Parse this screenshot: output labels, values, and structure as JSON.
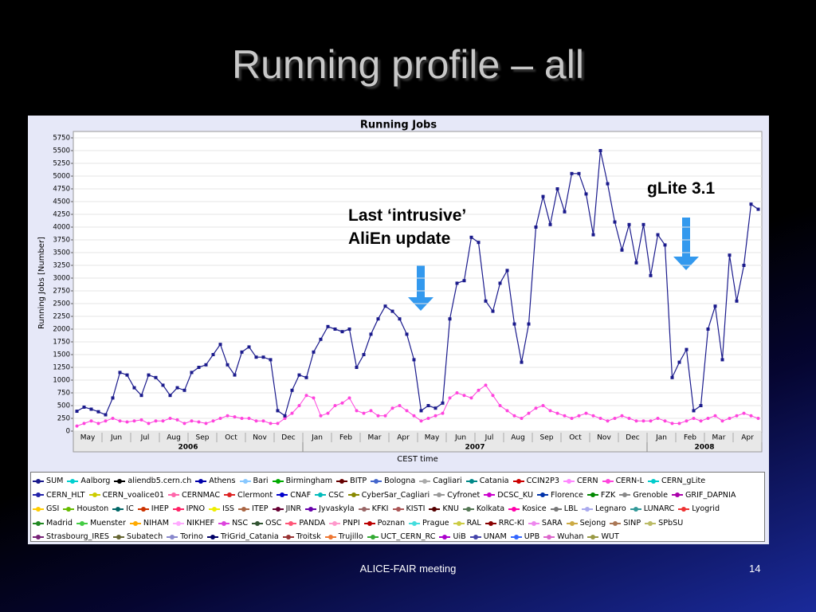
{
  "slide": {
    "title": "Running profile – all",
    "footer": "ALICE-FAIR meeting",
    "page_number": "14"
  },
  "chart_data": {
    "type": "line",
    "title": "Running Jobs",
    "y_label": "Running Jobs [Number]",
    "x_label": "CEST time",
    "annotations": [
      "Last ‘intrusive’ AliEn update",
      "gLite 3.1"
    ],
    "x_group_labels": [
      "2006",
      "2007",
      "2008"
    ],
    "categories": [
      null,
      "May",
      null,
      null,
      null,
      "Jun",
      null,
      null,
      null,
      "Jul",
      null,
      null,
      null,
      "Aug",
      null,
      null,
      null,
      "Sep",
      null,
      null,
      null,
      "Oct",
      null,
      null,
      null,
      "Nov",
      null,
      null,
      null,
      "Dec",
      null,
      null,
      null,
      "Jan",
      null,
      null,
      null,
      "Feb",
      null,
      null,
      null,
      "Mar",
      null,
      null,
      null,
      "Apr",
      null,
      null,
      null,
      "May",
      null,
      null,
      null,
      "Jun",
      null,
      null,
      null,
      "Jul",
      null,
      null,
      null,
      "Aug",
      null,
      null,
      null,
      "Sep",
      null,
      null,
      null,
      "Oct",
      null,
      null,
      null,
      "Nov",
      null,
      null,
      null,
      "Dec",
      null,
      null,
      null,
      "Jan",
      null,
      null,
      null,
      "Feb",
      null,
      null,
      null,
      "Mar",
      null,
      null,
      null,
      "Apr",
      null,
      null
    ],
    "ylim": [
      0,
      5750
    ],
    "yticks": [
      0,
      250,
      500,
      750,
      1000,
      1250,
      1500,
      1750,
      2000,
      2250,
      2500,
      2750,
      3000,
      3250,
      3500,
      3750,
      4000,
      4250,
      4500,
      4750,
      5000,
      5250,
      5500,
      5750
    ],
    "grid": true,
    "series": [
      {
        "name": "SUM",
        "color": "#1a1a8c",
        "values": [
          390,
          470,
          430,
          380,
          320,
          650,
          1150,
          1100,
          850,
          700,
          1100,
          1050,
          900,
          700,
          850,
          800,
          1150,
          1250,
          1300,
          1500,
          1700,
          1300,
          1100,
          1550,
          1650,
          1450,
          1450,
          1400,
          400,
          300,
          800,
          1100,
          1050,
          1550,
          1800,
          2050,
          2000,
          1950,
          2000,
          1250,
          1500,
          1900,
          2200,
          2450,
          2350,
          2200,
          1900,
          1400,
          400,
          500,
          450,
          550,
          2200,
          2900,
          2950,
          3800,
          3700,
          2550,
          2350,
          2900,
          3150,
          2100,
          1350,
          2100,
          4000,
          4600,
          4050,
          4750,
          4300,
          5050,
          5050,
          4650,
          3850,
          5500,
          4850,
          4100,
          3550,
          4050,
          3300,
          4050,
          3050,
          3850,
          3650,
          1050,
          1350,
          1600,
          400,
          500,
          2000,
          2450,
          1400,
          3450,
          2550,
          3250,
          4450,
          4350
        ]
      },
      {
        "name": "Aalborg",
        "color": "#00d0d0"
      },
      {
        "name": "aliendb5.cern.ch",
        "color": "#000000"
      },
      {
        "name": "Athens",
        "color": "#0000aa"
      },
      {
        "name": "Bari",
        "color": "#88c8ff"
      },
      {
        "name": "Birmingham",
        "color": "#00aa00"
      },
      {
        "name": "BITP",
        "color": "#660000"
      },
      {
        "name": "Bologna",
        "color": "#4466cc"
      },
      {
        "name": "Cagliari",
        "color": "#aaaaaa"
      },
      {
        "name": "Catania",
        "color": "#008888"
      },
      {
        "name": "CCIN2P3",
        "color": "#cc0000"
      },
      {
        "name": "CERN",
        "color": "#ff88ff"
      },
      {
        "name": "CERN-L",
        "color": "#ff44dd",
        "values": [
          100,
          150,
          200,
          150,
          200,
          250,
          200,
          180,
          200,
          220,
          150,
          200,
          200,
          250,
          220,
          150,
          200,
          180,
          150,
          200,
          250,
          300,
          280,
          250,
          250,
          200,
          200,
          150,
          150,
          250,
          350,
          500,
          700,
          650,
          300,
          350,
          500,
          550,
          650,
          400,
          350,
          400,
          300,
          300,
          450,
          500,
          400,
          300,
          200,
          250,
          300,
          350,
          650,
          750,
          700,
          650,
          800,
          900,
          700,
          500,
          400,
          300,
          250,
          350,
          450,
          500,
          400,
          350,
          300,
          250,
          300,
          350,
          300,
          250,
          200,
          250,
          300,
          250,
          200,
          200,
          200,
          250,
          200,
          150,
          150,
          200,
          250,
          200,
          250,
          300,
          200,
          250,
          300,
          350,
          300,
          250
        ]
      },
      {
        "name": "CERN_gLite",
        "color": "#00cccc"
      },
      {
        "name": "CERN_HLT",
        "color": "#2222aa"
      },
      {
        "name": "CERN_voalice01",
        "color": "#cccc00"
      },
      {
        "name": "CERNMAC",
        "color": "#ff66aa"
      },
      {
        "name": "Clermont",
        "color": "#dd2222"
      },
      {
        "name": "CNAF",
        "color": "#0000cc"
      },
      {
        "name": "CSC",
        "color": "#00bbbb"
      },
      {
        "name": "CyberSar_Cagliari",
        "color": "#888800"
      },
      {
        "name": "Cyfronet",
        "color": "#999999"
      },
      {
        "name": "DCSC_KU",
        "color": "#cc00cc"
      },
      {
        "name": "Florence",
        "color": "#0033aa"
      },
      {
        "name": "FZK",
        "color": "#008800"
      },
      {
        "name": "Grenoble",
        "color": "#888888"
      },
      {
        "name": "GRIF_DAPNIA",
        "color": "#aa00aa"
      },
      {
        "name": "GSI",
        "color": "#ffcc00"
      },
      {
        "name": "Houston",
        "color": "#66bb00"
      },
      {
        "name": "IC",
        "color": "#006666"
      },
      {
        "name": "IHEP",
        "color": "#cc3300"
      },
      {
        "name": "IPNO",
        "color": "#ff2266"
      },
      {
        "name": "ISS",
        "color": "#eeee00"
      },
      {
        "name": "ITEP",
        "color": "#aa6644"
      },
      {
        "name": "JINR",
        "color": "#660033"
      },
      {
        "name": "Jyvaskyla",
        "color": "#6600aa"
      },
      {
        "name": "KFKI",
        "color": "#996666"
      },
      {
        "name": "KISTI",
        "color": "#aa5555"
      },
      {
        "name": "KNU",
        "color": "#550000"
      },
      {
        "name": "Kolkata",
        "color": "#557755"
      },
      {
        "name": "Kosice",
        "color": "#ff00aa"
      },
      {
        "name": "LBL",
        "color": "#777777"
      },
      {
        "name": "Legnaro",
        "color": "#aaaaee"
      },
      {
        "name": "LUNARC",
        "color": "#339999"
      },
      {
        "name": "Lyogrid",
        "color": "#ee3333"
      },
      {
        "name": "Madrid",
        "color": "#228822"
      },
      {
        "name": "Muenster",
        "color": "#44cc44"
      },
      {
        "name": "NIHAM",
        "color": "#ffaa00"
      },
      {
        "name": "NIKHEF",
        "color": "#ffaaff"
      },
      {
        "name": "NSC",
        "color": "#dd44dd"
      },
      {
        "name": "OSC",
        "color": "#335533"
      },
      {
        "name": "PANDA",
        "color": "#ff5577"
      },
      {
        "name": "PNPI",
        "color": "#ff99cc"
      },
      {
        "name": "Poznan",
        "color": "#bb0000"
      },
      {
        "name": "Prague",
        "color": "#44dddd"
      },
      {
        "name": "RAL",
        "color": "#cccc44"
      },
      {
        "name": "RRC-KI",
        "color": "#880000"
      },
      {
        "name": "SARA",
        "color": "#ee88ee"
      },
      {
        "name": "Sejong",
        "color": "#ccaa44"
      },
      {
        "name": "SINP",
        "color": "#aa7755"
      },
      {
        "name": "SPbSU",
        "color": "#bbbb66"
      },
      {
        "name": "Strasbourg_IRES",
        "color": "#772277"
      },
      {
        "name": "Subatech",
        "color": "#666633"
      },
      {
        "name": "Torino",
        "color": "#8888cc"
      },
      {
        "name": "TriGrid_Catania",
        "color": "#000066"
      },
      {
        "name": "Troitsk",
        "color": "#993333"
      },
      {
        "name": "Trujillo",
        "color": "#ee7733"
      },
      {
        "name": "UCT_CERN_RC",
        "color": "#33aa33"
      },
      {
        "name": "UiB",
        "color": "#aa00cc"
      },
      {
        "name": "UNAM",
        "color": "#4444aa"
      },
      {
        "name": "UPB",
        "color": "#3366ff"
      },
      {
        "name": "Wuhan",
        "color": "#dd66cc"
      },
      {
        "name": "WUT",
        "color": "#999944"
      }
    ]
  }
}
